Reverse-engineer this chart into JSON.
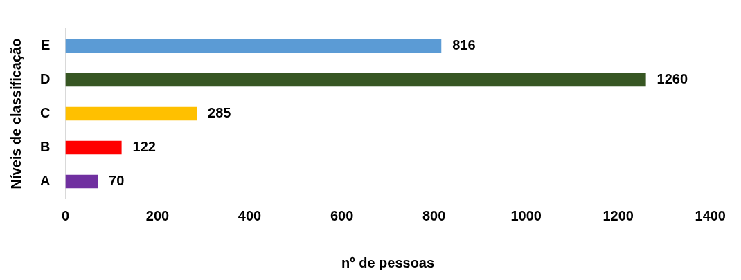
{
  "chart_data": {
    "type": "bar",
    "orientation": "horizontal",
    "xlabel": "nº de pessoas",
    "ylabel": "Níveis de classificação",
    "categories": [
      "E",
      "D",
      "C",
      "B",
      "A"
    ],
    "values": [
      816,
      1260,
      285,
      122,
      70
    ],
    "colors": [
      "#5b9bd5",
      "#375623",
      "#ffc000",
      "#ff0000",
      "#7030a0"
    ],
    "xlim": [
      0,
      1400
    ],
    "xticks": [
      0,
      200,
      400,
      600,
      800,
      1000,
      1200,
      1400
    ],
    "grid": false,
    "legend": false,
    "data_labels": true
  }
}
